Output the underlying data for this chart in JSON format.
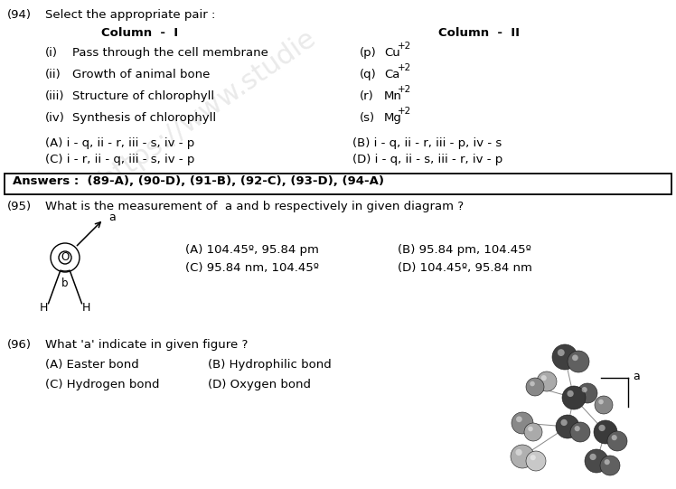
{
  "bg_color": "#ffffff",
  "q94": {
    "num": "(94)",
    "text": "Select the appropriate pair :",
    "col1_header": "Column  -  I",
    "col2_header": "Column  -  II",
    "col1_items": [
      [
        "(i)",
        "Pass through the cell membrane"
      ],
      [
        "(ii)",
        "Growth of animal bone"
      ],
      [
        "(iii)",
        "Structure of chlorophyll"
      ],
      [
        "(iv)",
        "Synthesis of chlorophyll"
      ]
    ],
    "col2_items": [
      [
        "(p)",
        "Cu",
        "+2"
      ],
      [
        "(q)",
        "Ca",
        "+2"
      ],
      [
        "(r)",
        "Mn",
        "+2"
      ],
      [
        "(s)",
        "Mg",
        "+2"
      ]
    ],
    "options_left": [
      "(A) i - q, ii - r, iii - s, iv - p",
      "(C) i - r, ii - q, iii - s, iv - p"
    ],
    "options_right": [
      "(B) i - q, ii - r, iii - p, iv - s",
      "(D) i - q, ii - s, iii - r, iv - p"
    ]
  },
  "answers": "Answers :  (89-A), (90-D), (91-B), (92-C), (93-D), (94-A)",
  "q95": {
    "num": "(95)",
    "text": "What is the measurement of  a and b respectively in given diagram ?",
    "options_left": [
      "(A) 104.45º, 95.84 pm",
      "(C) 95.84 nm, 104.45º"
    ],
    "options_right": [
      "(B) 95.84 pm, 104.45º",
      "(D) 104.45º, 95.84 nm"
    ]
  },
  "q96": {
    "num": "(96)",
    "text": "What 'a' indicate in given figure ?",
    "options_left": [
      "(A) Easter bond",
      "(C) Hydrogen bond"
    ],
    "options_right": [
      "(B) Hydrophilic bond",
      "(D) Oxygen bond"
    ]
  }
}
